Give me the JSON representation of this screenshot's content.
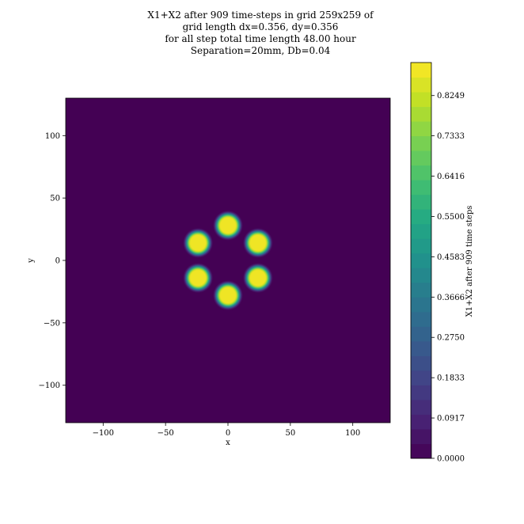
{
  "chart_data": {
    "type": "heatmap",
    "title_lines": [
      "X1+X2 after 909 time-steps in grid 259x259 of",
      "grid length dx=0.356, dy=0.356",
      "for all step total time length 48.00 hour",
      "Separation=20mm, Db=0.04"
    ],
    "xlabel": "x",
    "ylabel": "y",
    "xlim": [
      -130,
      130
    ],
    "ylim": [
      -130,
      130
    ],
    "x_ticks": [
      -100,
      -50,
      0,
      50,
      100
    ],
    "y_ticks": [
      -100,
      -50,
      0,
      50,
      100
    ],
    "x_tick_labels": [
      "−100",
      "−50",
      "0",
      "50",
      "100"
    ],
    "y_tick_labels": [
      "−100",
      "−50",
      "0",
      "50",
      "100"
    ],
    "background_value": 0.0,
    "spots": [
      {
        "x": 0,
        "y": 28,
        "peak": 0.88
      },
      {
        "x": 24,
        "y": 14,
        "peak": 0.88
      },
      {
        "x": 24,
        "y": -14,
        "peak": 0.88
      },
      {
        "x": 0,
        "y": -28,
        "peak": 0.88
      },
      {
        "x": -24,
        "y": -14,
        "peak": 0.88
      },
      {
        "x": -24,
        "y": 14,
        "peak": 0.88
      }
    ],
    "spot_plateau_radius": 6,
    "spot_edge_radius": 12,
    "colorbar": {
      "label": "X1+X2 after 909 time steps",
      "min": 0.0,
      "max": 0.9,
      "levels": 27,
      "tick_values": [
        0.0,
        0.0917,
        0.1833,
        0.275,
        0.3666,
        0.4583,
        0.55,
        0.6416,
        0.7333,
        0.8249
      ],
      "tick_labels": [
        "0.0000",
        "0.0917",
        "0.1833",
        "0.2750",
        "0.3666",
        "0.4583",
        "0.5500",
        "0.6416",
        "0.7333",
        "0.8249"
      ],
      "colormap": "viridis"
    }
  }
}
